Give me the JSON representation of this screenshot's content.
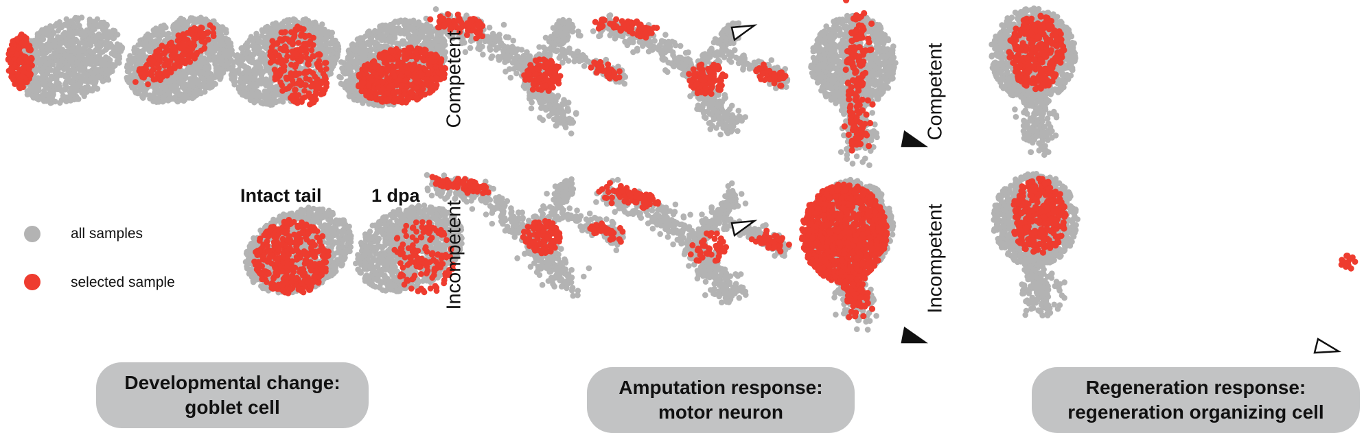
{
  "colors": {
    "all": "#b3b3b3",
    "selected": "#ee3c2f",
    "pill": "#c2c3c4",
    "text": "#111111"
  },
  "developmental": {
    "column_headers": [
      "Intact tail",
      "1 dpa"
    ],
    "legend": {
      "all_label": "all samples",
      "selected_label": "selected sample"
    }
  },
  "amputation": {
    "row_labels": [
      "Competent",
      "Incompetent"
    ]
  },
  "regeneration": {
    "row_labels": [
      "Competent",
      "Incompetent"
    ]
  },
  "panel_titles": [
    {
      "line1": "Developmental change:",
      "line2": "goblet cell"
    },
    {
      "line1": "Amputation response:",
      "line2": "motor neuron"
    },
    {
      "line1": "Regeneration response:",
      "line2": "regeneration organizing cell"
    }
  ],
  "markers": {
    "filled": "filled-triangle-marker",
    "open": "open-triangle-marker"
  }
}
